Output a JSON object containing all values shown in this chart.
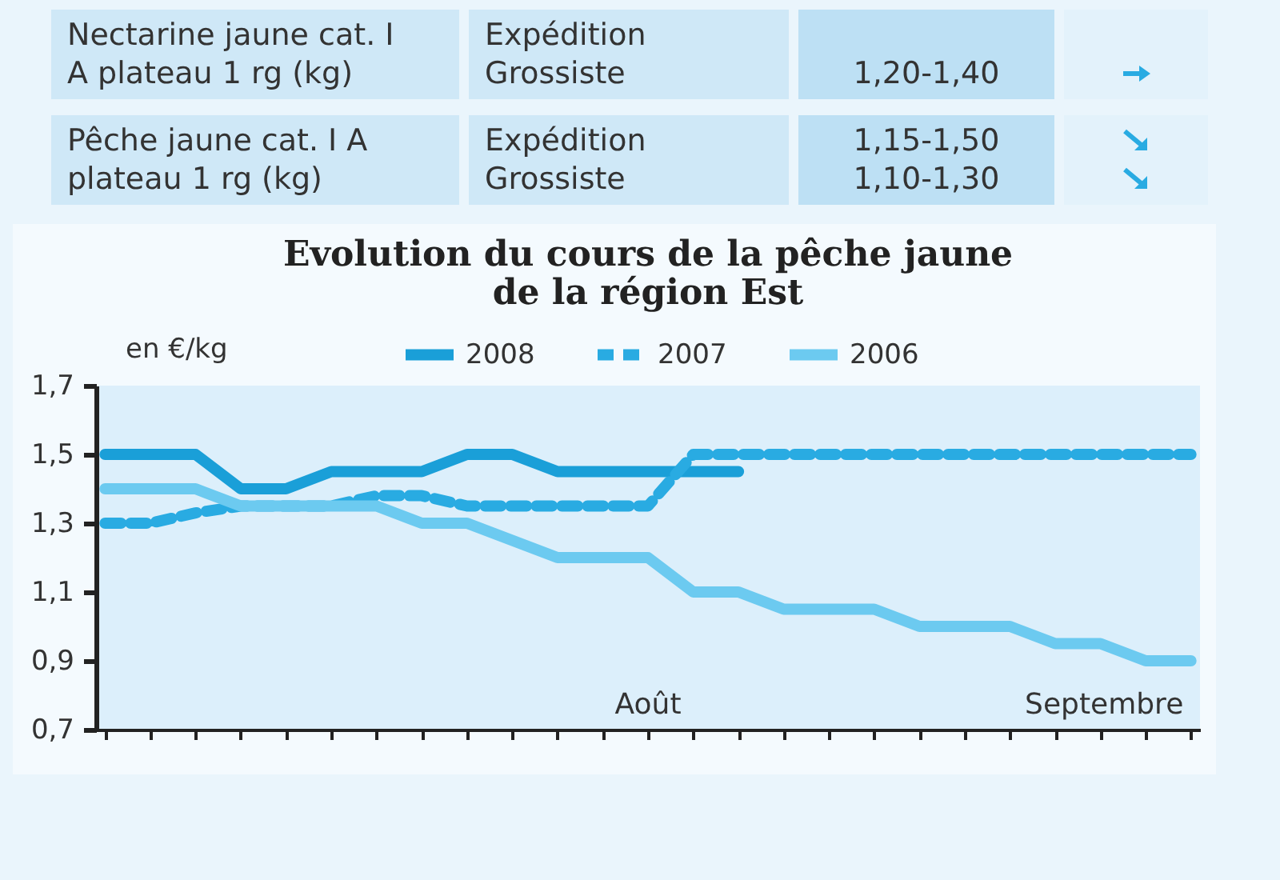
{
  "chart_data": [
    {
      "type": "other",
      "annotations": [
        "Nectarine jaune cat. I\nA plateau 1 rg (kg)",
        "Expédition\nGrossiste",
        "1,20-1,40",
        "Pêche jaune cat. I A\nplateau 1 rg (kg)",
        "Expédition\nGrossiste",
        "1,15-1,50\n1,10-1,30"
      ]
    },
    {
      "type": "line",
      "title": [
        "Evolution du cours de la pêche jaune",
        "de la région Est"
      ],
      "ylabel": "en €/kg",
      "categories": [
        null,
        null,
        null,
        null,
        null,
        null,
        null,
        null,
        null,
        null,
        null,
        null,
        null,
        null,
        null,
        null,
        null,
        null,
        null,
        null,
        null,
        null,
        null,
        null,
        null
      ],
      "series": [
        {
          "name": "2008",
          "color": "#1a9fd8",
          "line_style": "solid",
          "values": [
            1.5,
            1.5,
            1.5,
            1.4,
            1.4,
            1.45,
            1.45,
            1.45,
            1.5,
            1.5,
            1.45,
            1.45,
            1.45,
            1.45,
            1.45,
            null,
            null,
            null,
            null,
            null,
            null,
            null,
            null,
            null,
            null
          ]
        },
        {
          "name": "2007",
          "color": "#29abe2",
          "line_style": "dashed",
          "values": [
            1.3,
            1.3,
            1.33,
            1.35,
            1.35,
            1.35,
            1.38,
            1.38,
            1.35,
            1.35,
            1.35,
            1.35,
            1.35,
            1.5,
            1.5,
            1.5,
            1.5,
            1.5,
            1.5,
            1.5,
            1.5,
            1.5,
            1.5,
            1.5,
            1.5
          ]
        },
        {
          "name": "2006",
          "color": "#6ccaf0",
          "line_style": "solid",
          "values": [
            1.4,
            1.4,
            1.4,
            1.35,
            1.35,
            1.35,
            1.35,
            1.3,
            1.3,
            1.25,
            1.2,
            1.2,
            1.2,
            1.1,
            1.1,
            1.05,
            1.05,
            1.05,
            1.0,
            1.0,
            1.0,
            0.95,
            0.95,
            0.9,
            0.9
          ]
        }
      ],
      "ylim": [
        0.7,
        1.7
      ],
      "yticks": [
        {
          "value": 0.7,
          "label": "0,7"
        },
        {
          "value": 0.9,
          "label": "0,9"
        },
        {
          "value": 1.1,
          "label": "1,1"
        },
        {
          "value": 1.3,
          "label": "1,3"
        },
        {
          "value": 1.5,
          "label": "1,5"
        },
        {
          "value": 1.7,
          "label": "1,7"
        }
      ],
      "grid": false,
      "legend": "top",
      "marker": "none",
      "annotations": [
        "Août",
        "Septembre"
      ]
    }
  ]
}
